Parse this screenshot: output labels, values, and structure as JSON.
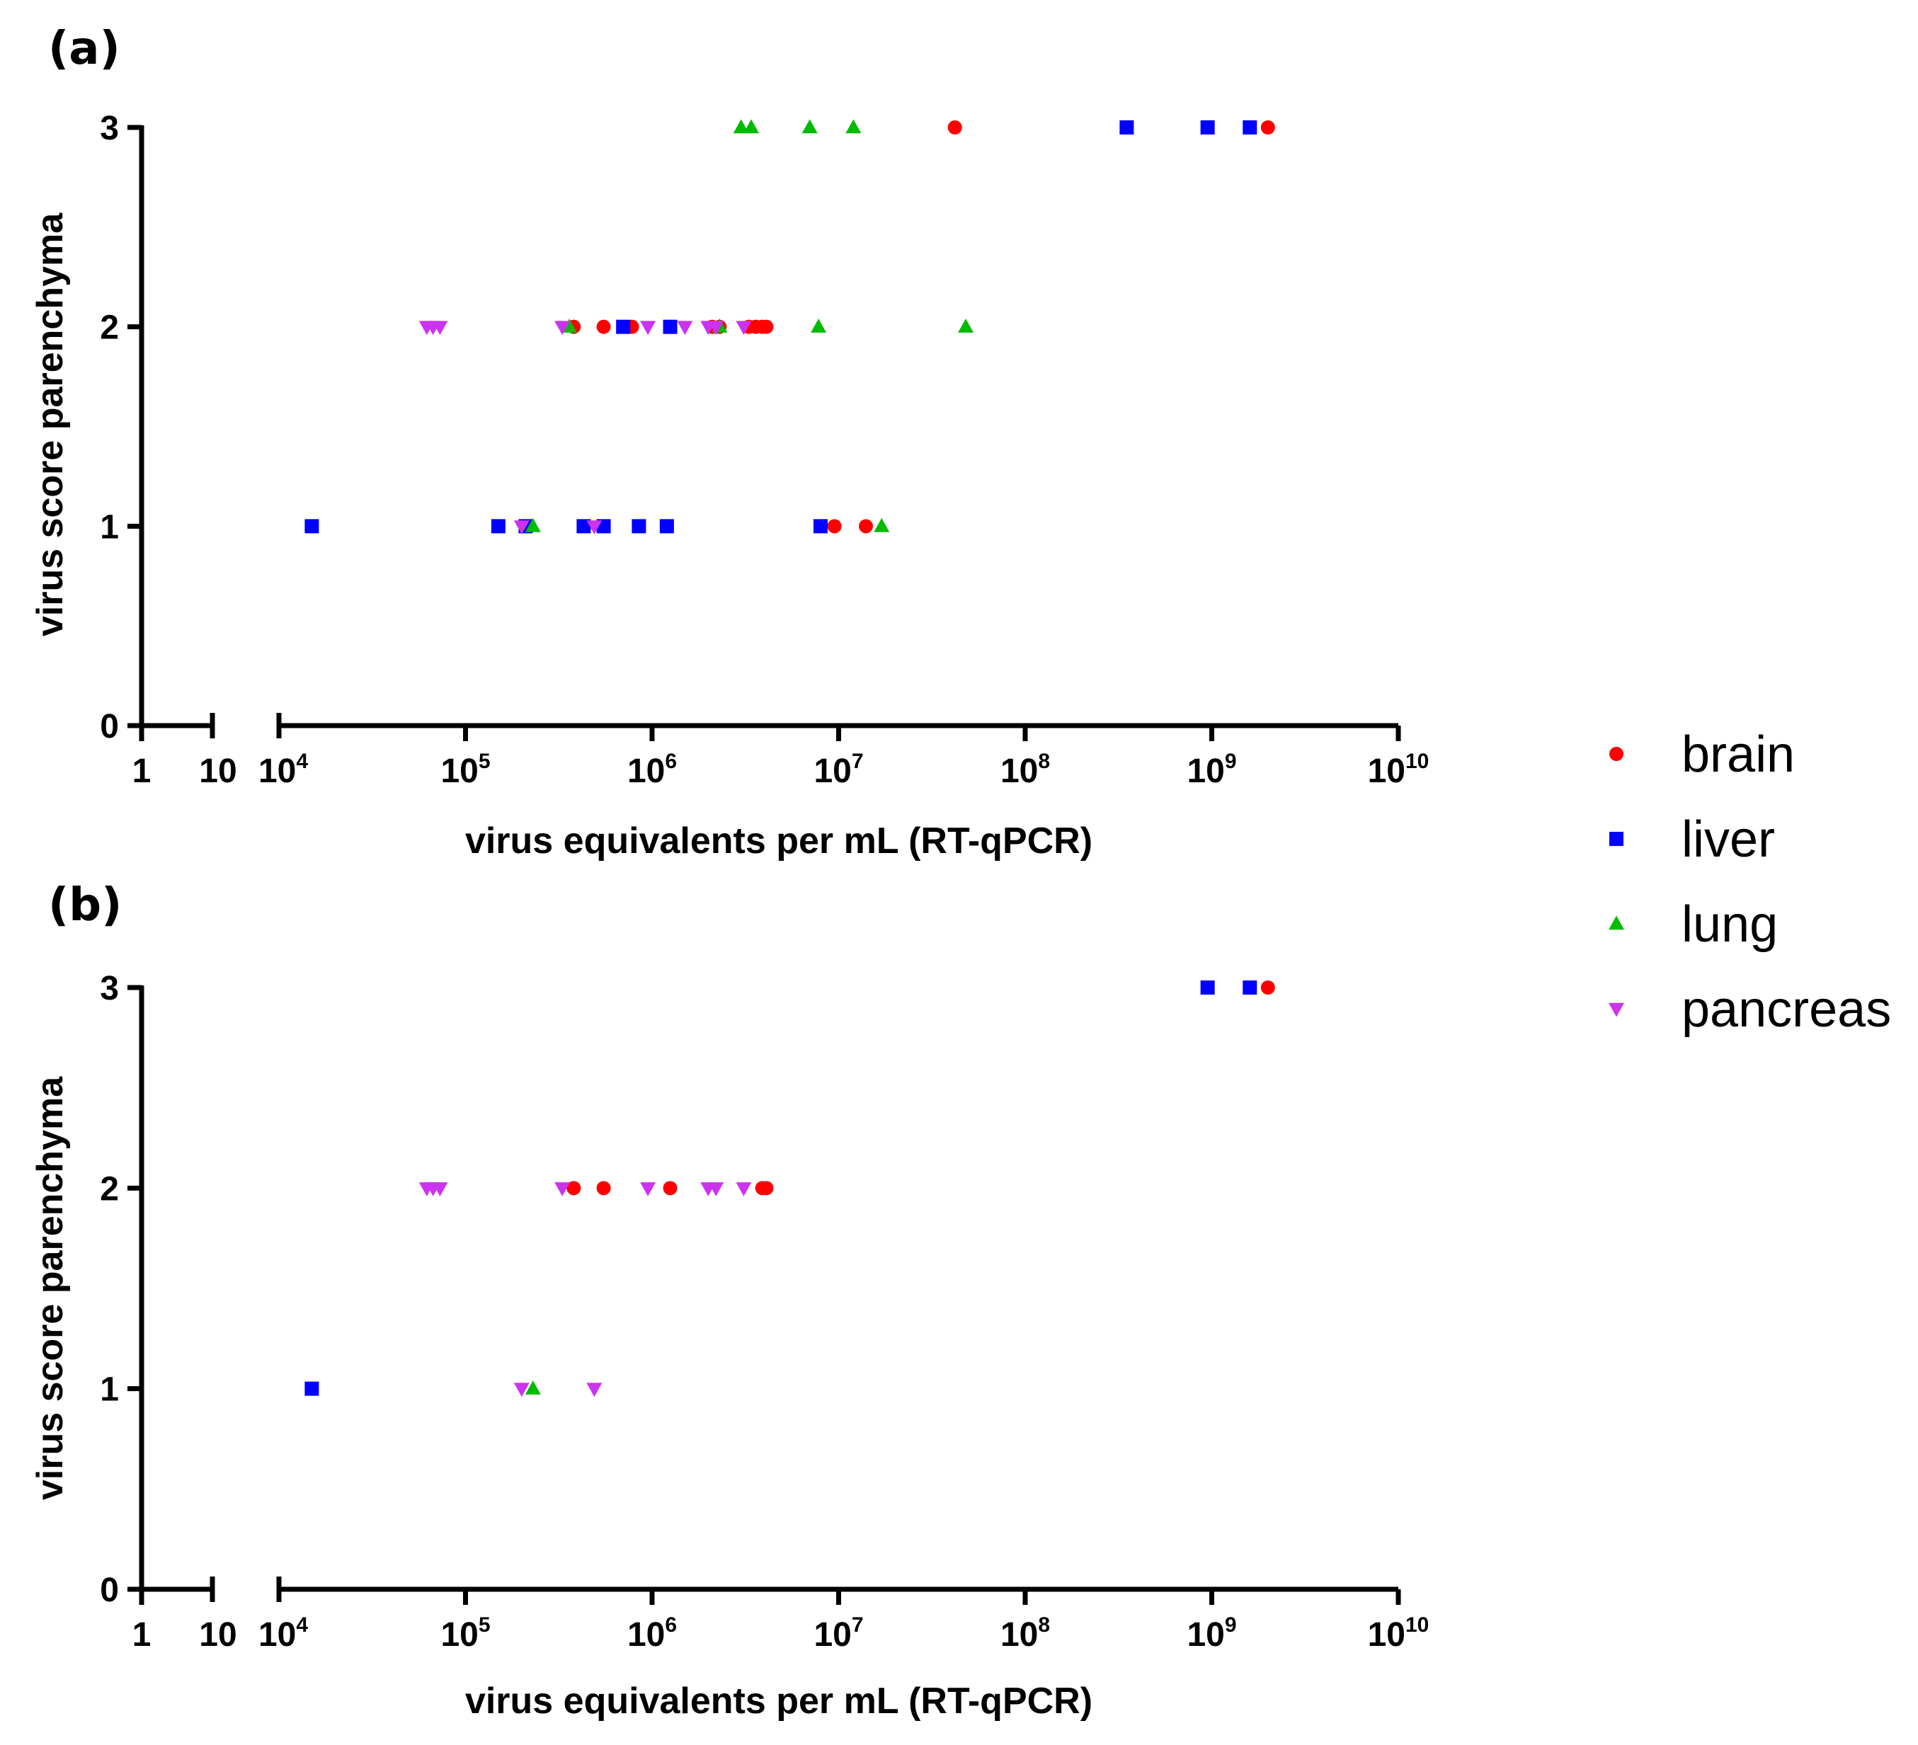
{
  "colors": {
    "brain": "#ff0000",
    "liver": "#0000ff",
    "lung": "#00bb00",
    "pancreas": "#cc33ee",
    "axis": "#000000"
  },
  "legend": [
    {
      "key": "brain",
      "label": "brain",
      "marker": "circle"
    },
    {
      "key": "liver",
      "label": "liver",
      "marker": "square"
    },
    {
      "key": "lung",
      "label": "lung",
      "marker": "triangle-up"
    },
    {
      "key": "pancreas",
      "label": "pancreas",
      "marker": "triangle-down"
    }
  ],
  "chart_data": [
    {
      "panel": "(a)",
      "type": "scatter",
      "xlabel": "virus equivalents per mL (RT-qPCR)",
      "ylabel": "virus score parenchyma",
      "xscale": "log, split axis",
      "x_ticks_left_segment": [
        {
          "value": 1,
          "base": "1",
          "exp": ""
        },
        {
          "value": 10,
          "base": "10",
          "exp": ""
        }
      ],
      "x_ticks_right_segment": [
        {
          "value": 10000,
          "base": "10",
          "exp": "4"
        },
        {
          "value": 100000,
          "base": "10",
          "exp": "5"
        },
        {
          "value": 1000000,
          "base": "10",
          "exp": "6"
        },
        {
          "value": 10000000,
          "base": "10",
          "exp": "7"
        },
        {
          "value": 100000000,
          "base": "10",
          "exp": "8"
        },
        {
          "value": 1000000000,
          "base": "10",
          "exp": "9"
        },
        {
          "value": 10000000000,
          "base": "10",
          "exp": "10"
        }
      ],
      "y_ticks": [
        "0",
        "1",
        "2",
        "3"
      ],
      "ylim": [
        0,
        3
      ],
      "series": [
        {
          "name": "brain",
          "points": [
            [
              42000000,
              3
            ],
            [
              2000000000,
              3
            ],
            [
              380000,
              2
            ],
            [
              550000,
              2
            ],
            [
              780000,
              2
            ],
            [
              1250000,
              2
            ],
            [
              2100000,
              2
            ],
            [
              2300000,
              2
            ],
            [
              3300000,
              2
            ],
            [
              3600000,
              2
            ],
            [
              3900000,
              2
            ],
            [
              4100000,
              2
            ],
            [
              9500000,
              1
            ],
            [
              14000000,
              1
            ]
          ]
        },
        {
          "name": "liver",
          "points": [
            [
              350000000,
              3
            ],
            [
              950000000,
              3
            ],
            [
              1600000000,
              3
            ],
            [
              700000,
              2
            ],
            [
              1250000,
              2
            ],
            [
              15000,
              1
            ],
            [
              150000,
              1
            ],
            [
              210000,
              1
            ],
            [
              430000,
              1
            ],
            [
              550000,
              1
            ],
            [
              850000,
              1
            ],
            [
              1200000,
              1
            ],
            [
              8000000,
              1
            ]
          ]
        },
        {
          "name": "lung",
          "points": [
            [
              3000000,
              3
            ],
            [
              3400000,
              3
            ],
            [
              7000000,
              3
            ],
            [
              12000000,
              3
            ],
            [
              360000,
              2
            ],
            [
              2300000,
              2
            ],
            [
              7800000,
              2
            ],
            [
              48000000,
              2
            ],
            [
              230000,
              1
            ],
            [
              17000000,
              1
            ]
          ]
        },
        {
          "name": "pancreas",
          "points": [
            [
              62000,
              2
            ],
            [
              67000,
              2
            ],
            [
              73000,
              2
            ],
            [
              330000,
              2
            ],
            [
              950000,
              2
            ],
            [
              1500000,
              2
            ],
            [
              2000000,
              2
            ],
            [
              2200000,
              2
            ],
            [
              3100000,
              2
            ],
            [
              200000,
              1
            ],
            [
              490000,
              1
            ]
          ]
        }
      ]
    },
    {
      "panel": "(b)",
      "type": "scatter",
      "xlabel": "virus equivalents per mL (RT-qPCR)",
      "ylabel": "virus score parenchyma",
      "xscale": "log, split axis",
      "x_ticks_left_segment": [
        {
          "value": 1,
          "base": "1",
          "exp": ""
        },
        {
          "value": 10,
          "base": "10",
          "exp": ""
        }
      ],
      "x_ticks_right_segment": [
        {
          "value": 10000,
          "base": "10",
          "exp": "4"
        },
        {
          "value": 100000,
          "base": "10",
          "exp": "5"
        },
        {
          "value": 1000000,
          "base": "10",
          "exp": "6"
        },
        {
          "value": 10000000,
          "base": "10",
          "exp": "7"
        },
        {
          "value": 100000000,
          "base": "10",
          "exp": "8"
        },
        {
          "value": 1000000000,
          "base": "10",
          "exp": "9"
        },
        {
          "value": 10000000000,
          "base": "10",
          "exp": "10"
        }
      ],
      "y_ticks": [
        "0",
        "1",
        "2",
        "3"
      ],
      "ylim": [
        0,
        3
      ],
      "series": [
        {
          "name": "brain",
          "points": [
            [
              2000000000,
              3
            ],
            [
              380000,
              2
            ],
            [
              550000,
              2
            ],
            [
              1250000,
              2
            ],
            [
              3900000,
              2
            ],
            [
              4100000,
              2
            ]
          ]
        },
        {
          "name": "liver",
          "points": [
            [
              950000000,
              3
            ],
            [
              1600000000,
              3
            ],
            [
              15000,
              1
            ]
          ]
        },
        {
          "name": "lung",
          "points": [
            [
              230000,
              1
            ]
          ]
        },
        {
          "name": "pancreas",
          "points": [
            [
              62000,
              2
            ],
            [
              67000,
              2
            ],
            [
              73000,
              2
            ],
            [
              330000,
              2
            ],
            [
              950000,
              2
            ],
            [
              2000000,
              2
            ],
            [
              2200000,
              2
            ],
            [
              3100000,
              2
            ],
            [
              200000,
              1
            ],
            [
              490000,
              1
            ]
          ]
        }
      ]
    }
  ]
}
